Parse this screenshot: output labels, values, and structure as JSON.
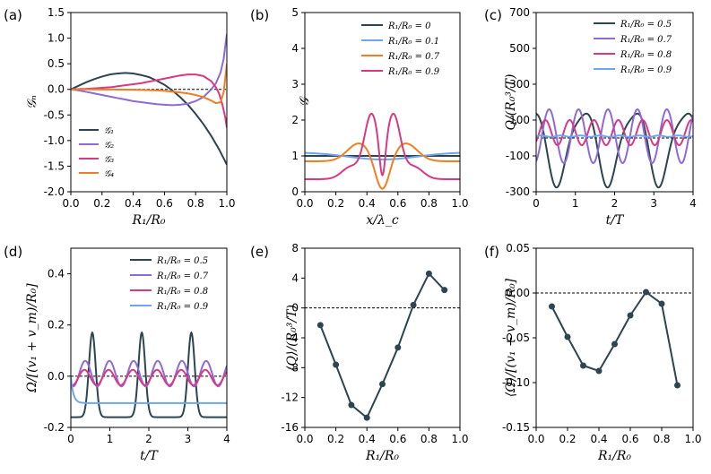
{
  "colors": {
    "dark": "#2c4550",
    "purple": "#8e6ad8",
    "pink": "#d73a82",
    "orange": "#f07e22",
    "blue": "#6fa4ee"
  },
  "chart_data": [
    {
      "id": "a",
      "panel_label": "(a)",
      "type": "line",
      "xlabel": "R₁/R₀",
      "ylabel": "𝒢ₙ",
      "xlim": [
        0,
        1
      ],
      "ylim": [
        -2.0,
        1.5
      ],
      "xticks": [
        0,
        0.2,
        0.4,
        0.6,
        0.8,
        1.0
      ],
      "xtick_labels": [
        "0.0",
        "0.2",
        "0.4",
        "0.6",
        "0.8",
        "1.0"
      ],
      "yticks": [
        -2.0,
        -1.5,
        -1.0,
        -0.5,
        0.0,
        0.5,
        1.0,
        1.5
      ],
      "ytick_labels": [
        "-2.0",
        "-1.5",
        "-1.0",
        "-0.5",
        "0.0",
        "0.5",
        "1.0",
        "1.5"
      ],
      "hline": 0,
      "legend": "lower-left",
      "series": [
        {
          "name": "𝒢₁",
          "color": "dark",
          "x": [
            0,
            0.05,
            0.1,
            0.15,
            0.2,
            0.25,
            0.3,
            0.35,
            0.4,
            0.45,
            0.5,
            0.55,
            0.6,
            0.65,
            0.7,
            0.75,
            0.8,
            0.85,
            0.9,
            0.95,
            1.0
          ],
          "y": [
            0,
            0.07,
            0.14,
            0.2,
            0.25,
            0.29,
            0.31,
            0.32,
            0.31,
            0.28,
            0.24,
            0.17,
            0.09,
            -0.02,
            -0.15,
            -0.3,
            -0.48,
            -0.68,
            -0.91,
            -1.17,
            -1.47
          ]
        },
        {
          "name": "𝒢₂",
          "color": "purple",
          "x": [
            0,
            0.05,
            0.1,
            0.15,
            0.2,
            0.25,
            0.3,
            0.35,
            0.4,
            0.45,
            0.5,
            0.55,
            0.6,
            0.65,
            0.7,
            0.75,
            0.8,
            0.85,
            0.9,
            0.93,
            0.96,
            0.98,
            0.99,
            1.0
          ],
          "y": [
            0,
            -0.02,
            -0.05,
            -0.08,
            -0.11,
            -0.14,
            -0.17,
            -0.2,
            -0.23,
            -0.25,
            -0.27,
            -0.29,
            -0.3,
            -0.31,
            -0.3,
            -0.28,
            -0.23,
            -0.15,
            0.0,
            0.12,
            0.33,
            0.6,
            0.85,
            1.08
          ]
        },
        {
          "name": "𝒢₃",
          "color": "pink",
          "x": [
            0,
            0.05,
            0.1,
            0.15,
            0.2,
            0.25,
            0.3,
            0.35,
            0.4,
            0.45,
            0.5,
            0.55,
            0.6,
            0.65,
            0.7,
            0.75,
            0.8,
            0.85,
            0.9,
            0.93,
            0.95,
            0.97,
            0.99,
            1.0
          ],
          "y": [
            0,
            0.005,
            0.01,
            0.02,
            0.03,
            0.04,
            0.06,
            0.08,
            0.1,
            0.12,
            0.15,
            0.18,
            0.21,
            0.24,
            0.27,
            0.29,
            0.29,
            0.26,
            0.16,
            0.04,
            -0.08,
            -0.28,
            -0.55,
            -0.75
          ]
        },
        {
          "name": "𝒢₄",
          "color": "orange",
          "x": [
            0,
            0.1,
            0.2,
            0.3,
            0.4,
            0.5,
            0.55,
            0.6,
            0.65,
            0.7,
            0.75,
            0.8,
            0.85,
            0.9,
            0.93,
            0.96,
            0.98,
            1.0
          ],
          "y": [
            0,
            0,
            -0.002,
            -0.004,
            -0.008,
            -0.015,
            -0.02,
            -0.03,
            -0.045,
            -0.06,
            -0.08,
            -0.11,
            -0.15,
            -0.22,
            -0.27,
            -0.25,
            -0.05,
            0.5
          ]
        }
      ],
      "legend_entries": [
        "𝒢₁",
        "𝒢₂",
        "𝒢₃",
        "𝒢₄"
      ]
    },
    {
      "id": "b",
      "panel_label": "(b)",
      "type": "line",
      "xlabel": "x/λ_c",
      "ylabel": "𝒢",
      "xlim": [
        0,
        1
      ],
      "ylim": [
        0,
        5
      ],
      "xticks": [
        0,
        0.2,
        0.4,
        0.6,
        0.8,
        1.0
      ],
      "xtick_labels": [
        "0.0",
        "0.2",
        "0.4",
        "0.6",
        "0.8",
        "1.0"
      ],
      "yticks": [
        0,
        1,
        2,
        3,
        4,
        5
      ],
      "ytick_labels": [
        "0",
        "1",
        "2",
        "3",
        "4",
        "5"
      ],
      "hline": 0,
      "legend": "top-right",
      "series": [
        {
          "name": "R₁/R₀ = 0",
          "color": "dark",
          "formula": "b0"
        },
        {
          "name": "R₁/R₀ = 0.1",
          "color": "blue",
          "formula": "b1"
        },
        {
          "name": "R₁/R₀ = 0.7",
          "color": "orange",
          "formula": "b2"
        },
        {
          "name": "R₁/R₀ = 0.9",
          "color": "pink",
          "formula": "b3"
        }
      ]
    },
    {
      "id": "c",
      "panel_label": "(c)",
      "type": "line",
      "xlabel": "t/T",
      "ylabel": "Q/(R₀³/T)",
      "xlim": [
        0,
        4
      ],
      "ylim": [
        -300,
        700
      ],
      "xticks": [
        0,
        1,
        2,
        3,
        4
      ],
      "xtick_labels": [
        "0",
        "1",
        "2",
        "3",
        "4"
      ],
      "yticks": [
        -300,
        -100,
        100,
        300,
        500,
        700
      ],
      "ytick_labels": [
        "-300",
        "-100",
        "100",
        "300",
        "500",
        "700"
      ],
      "hline": 0,
      "legend": "top-right",
      "series": [
        {
          "name": "R₁/R₀ = 0.5",
          "color": "dark",
          "formula": "c0"
        },
        {
          "name": "R₁/R₀ = 0.7",
          "color": "purple",
          "formula": "c1"
        },
        {
          "name": "R₁/R₀ = 0.8",
          "color": "pink",
          "formula": "c2"
        },
        {
          "name": "R₁/R₀ = 0.9",
          "color": "blue",
          "formula": "c3"
        }
      ]
    },
    {
      "id": "d",
      "panel_label": "(d)",
      "type": "line",
      "xlabel": "t/T",
      "ylabel": "Ω/[(v₁ + v_m)/R₀]",
      "xlim": [
        0,
        4
      ],
      "ylim": [
        -0.2,
        0.5
      ],
      "xticks": [
        0,
        1,
        2,
        3,
        4
      ],
      "xtick_labels": [
        "0",
        "1",
        "2",
        "3",
        "4"
      ],
      "yticks": [
        -0.2,
        0.0,
        0.2,
        0.4
      ],
      "ytick_labels": [
        "-0.2",
        "0.0",
        "0.2",
        "0.4"
      ],
      "hline": 0,
      "legend": "top-right",
      "series": [
        {
          "name": "R₁/R₀ = 0.5",
          "color": "dark",
          "formula": "d0"
        },
        {
          "name": "R₁/R₀ = 0.7",
          "color": "purple",
          "formula": "d1"
        },
        {
          "name": "R₁/R₀ = 0.8",
          "color": "pink",
          "formula": "d2"
        },
        {
          "name": "R₁/R₀ = 0.9",
          "color": "blue",
          "formula": "d3"
        }
      ]
    },
    {
      "id": "e",
      "panel_label": "(e)",
      "type": "line",
      "xlabel": "R₁/R₀",
      "ylabel": "⟨Q⟩/(R₀³/T)",
      "xlim": [
        0,
        1
      ],
      "ylim": [
        -16,
        8
      ],
      "xticks": [
        0,
        0.2,
        0.4,
        0.6,
        0.8,
        1.0
      ],
      "xtick_labels": [
        "0.0",
        "0.2",
        "0.4",
        "0.6",
        "0.8",
        "1.0"
      ],
      "yticks": [
        -16,
        -12,
        -8,
        -4,
        0,
        4,
        8
      ],
      "ytick_labels": [
        "-16",
        "-12",
        "-8",
        "-4",
        "0",
        "4",
        "8"
      ],
      "hline": 0,
      "markers": true,
      "series": [
        {
          "name": "⟨Q⟩",
          "color": "dark",
          "x": [
            0.1,
            0.2,
            0.3,
            0.4,
            0.5,
            0.6,
            0.7,
            0.8,
            0.9
          ],
          "y": [
            -2.3,
            -7.6,
            -13.0,
            -14.7,
            -10.2,
            -5.3,
            0.4,
            4.6,
            2.4
          ]
        }
      ]
    },
    {
      "id": "f",
      "panel_label": "(f)",
      "type": "line",
      "xlabel": "R₁/R₀",
      "ylabel": "⟨Ω⟩/[(v₁ + v_m)/R₀]",
      "xlim": [
        0,
        1
      ],
      "ylim": [
        -0.15,
        0.05
      ],
      "xticks": [
        0,
        0.2,
        0.4,
        0.6,
        0.8,
        1.0
      ],
      "xtick_labels": [
        "0.0",
        "0.2",
        "0.4",
        "0.6",
        "0.8",
        "1.0"
      ],
      "yticks": [
        -0.15,
        -0.1,
        -0.05,
        0.0,
        0.05
      ],
      "ytick_labels": [
        "-0.15",
        "-0.10",
        "-0.05",
        "0.00",
        "0.05"
      ],
      "hline": 0,
      "markers": true,
      "series": [
        {
          "name": "⟨Ω⟩",
          "color": "dark",
          "x": [
            0.1,
            0.2,
            0.3,
            0.4,
            0.5,
            0.6,
            0.7,
            0.8,
            0.9
          ],
          "y": [
            -0.015,
            -0.049,
            -0.081,
            -0.087,
            -0.057,
            -0.025,
            0.001,
            -0.012,
            -0.103
          ]
        }
      ]
    }
  ]
}
